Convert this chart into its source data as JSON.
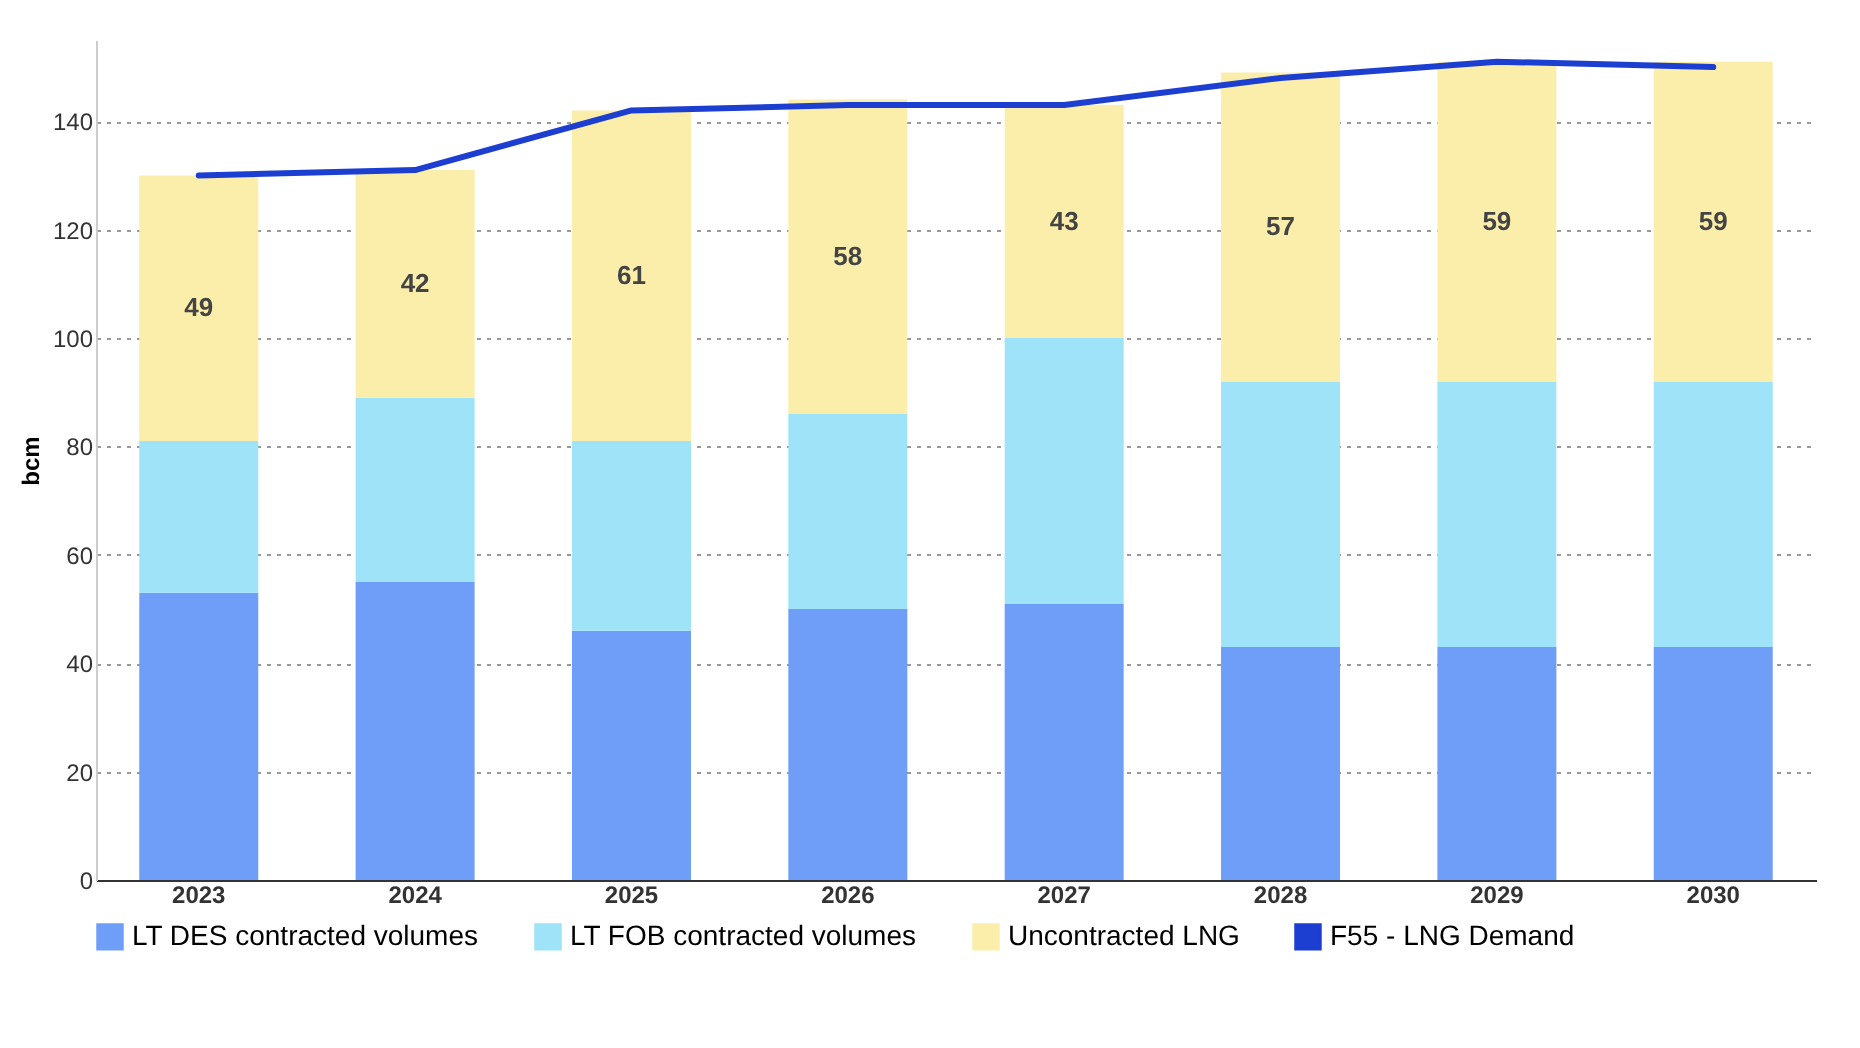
{
  "chart_data": {
    "type": "bar",
    "stacked": true,
    "ylabel": "bcm",
    "categories": [
      "2023",
      "2024",
      "2025",
      "2026",
      "2027",
      "2028",
      "2029",
      "2030"
    ],
    "series": [
      {
        "name": "LT DES contracted volumes",
        "color": "#6f9ef8",
        "values": [
          53,
          55,
          46,
          50,
          51,
          43,
          43,
          43
        ]
      },
      {
        "name": "LT FOB contracted volumes",
        "color": "#9ee3f8",
        "values": [
          28,
          34,
          35,
          36,
          49,
          49,
          49,
          49
        ]
      },
      {
        "name": "Uncontracted LNG",
        "color": "#fbeeab",
        "values": [
          49,
          42,
          61,
          58,
          43,
          57,
          59,
          59
        ],
        "value_labels": [
          "49",
          "42",
          "61",
          "58",
          "43",
          "57",
          "59",
          "59"
        ]
      },
      {
        "name": "F55 - LNG Demand",
        "type": "line",
        "color": "#1c3fd1",
        "values": [
          130,
          131,
          142,
          143,
          143,
          148,
          151,
          150
        ]
      }
    ],
    "ylim": [
      0,
      155
    ],
    "yticks": [
      0,
      20,
      40,
      60,
      80,
      100,
      120,
      140
    ],
    "grid": "y",
    "legend": "bottom"
  }
}
